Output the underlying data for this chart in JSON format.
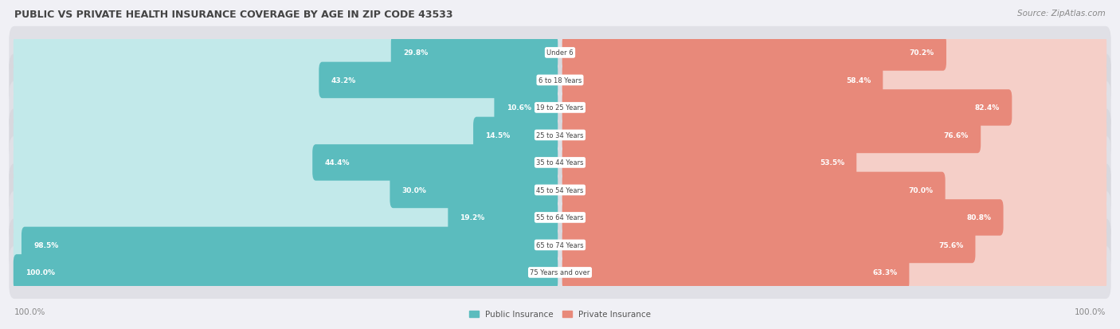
{
  "title": "PUBLIC VS PRIVATE HEALTH INSURANCE COVERAGE BY AGE IN ZIP CODE 43533",
  "source": "Source: ZipAtlas.com",
  "categories": [
    "Under 6",
    "6 to 18 Years",
    "19 to 25 Years",
    "25 to 34 Years",
    "35 to 44 Years",
    "45 to 54 Years",
    "55 to 64 Years",
    "65 to 74 Years",
    "75 Years and over"
  ],
  "public_values": [
    29.8,
    43.2,
    10.6,
    14.5,
    44.4,
    30.0,
    19.2,
    98.5,
    100.0
  ],
  "private_values": [
    70.2,
    58.4,
    82.4,
    76.6,
    53.5,
    70.0,
    80.8,
    75.6,
    63.3
  ],
  "public_color": "#5bbcbe",
  "private_color": "#e8897a",
  "public_color_light": "#c2e9ea",
  "private_color_light": "#f5cfc8",
  "row_bg": "#e8e8ec",
  "row_bg2": "#dcdce2",
  "title_color": "#555555",
  "source_color": "#888888",
  "legend_public": "Public Insurance",
  "legend_private": "Private Insurance",
  "axis_label_color": "#888888",
  "figsize": [
    14.06,
    4.14
  ],
  "dpi": 100
}
